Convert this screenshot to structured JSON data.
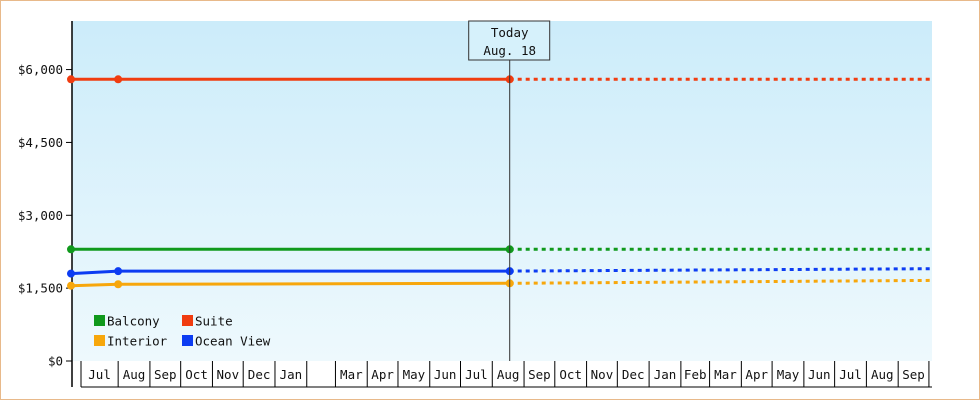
{
  "chart_data": {
    "type": "line",
    "ylim": [
      0,
      7000
    ],
    "y_ticks": [
      {
        "value": 0,
        "label": "$0"
      },
      {
        "value": 1500,
        "label": "$1,500"
      },
      {
        "value": 3000,
        "label": "$3,000"
      },
      {
        "value": 4500,
        "label": "$4,500"
      },
      {
        "value": 6000,
        "label": "$6,000"
      }
    ],
    "x_range": [
      "2017-06-16",
      "2019-10-04"
    ],
    "month_labels": [
      {
        "label": "Jul",
        "date": "2017-07"
      },
      {
        "label": "Aug",
        "date": "2017-08"
      },
      {
        "label": "Sep",
        "date": "2017-09"
      },
      {
        "label": "Oct",
        "date": "2017-10"
      },
      {
        "label": "Nov",
        "date": "2017-11"
      },
      {
        "label": "Dec",
        "date": "2017-12"
      },
      {
        "label": "Jan",
        "date": "2018-01"
      },
      {
        "label": "",
        "date": "2018-02"
      },
      {
        "label": "Mar",
        "date": "2018-03"
      },
      {
        "label": "Apr",
        "date": "2018-04"
      },
      {
        "label": "May",
        "date": "2018-05"
      },
      {
        "label": "Jun",
        "date": "2018-06"
      },
      {
        "label": "Jul",
        "date": "2018-07"
      },
      {
        "label": "Aug",
        "date": "2018-08"
      },
      {
        "label": "Sep",
        "date": "2018-09"
      },
      {
        "label": "Oct",
        "date": "2018-10"
      },
      {
        "label": "Nov",
        "date": "2018-11"
      },
      {
        "label": "Dec",
        "date": "2018-12"
      },
      {
        "label": "Jan",
        "date": "2019-01"
      },
      {
        "label": "Feb",
        "date": "2019-02"
      },
      {
        "label": "Mar",
        "date": "2019-03"
      },
      {
        "label": "Apr",
        "date": "2019-04"
      },
      {
        "label": "May",
        "date": "2019-05"
      },
      {
        "label": "Jun",
        "date": "2019-06"
      },
      {
        "label": "Jul",
        "date": "2019-07"
      },
      {
        "label": "Aug",
        "date": "2019-08"
      },
      {
        "label": "Sep",
        "date": "2019-09"
      }
    ],
    "today": {
      "line1": "Today",
      "line2": "Aug. 18",
      "date": "2018-08-18"
    },
    "series": [
      {
        "name": "Balcony",
        "color": "#10991c",
        "points": [
          {
            "x": "2017-06-16",
            "y": 2300
          },
          {
            "x": "2018-08-18",
            "y": 2300
          }
        ],
        "forecast": [
          {
            "x": "2018-08-18",
            "y": 2300
          },
          {
            "x": "2019-10-04",
            "y": 2300
          }
        ]
      },
      {
        "name": "Suite",
        "color": "#f03c10",
        "points": [
          {
            "x": "2017-06-16",
            "y": 5800
          },
          {
            "x": "2017-08-01",
            "y": 5800
          },
          {
            "x": "2018-08-18",
            "y": 5800
          }
        ],
        "forecast": [
          {
            "x": "2018-08-18",
            "y": 5800
          },
          {
            "x": "2019-10-04",
            "y": 5800
          }
        ]
      },
      {
        "name": "Interior",
        "color": "#f7a70c",
        "points": [
          {
            "x": "2017-06-16",
            "y": 1550
          },
          {
            "x": "2017-08-01",
            "y": 1580
          },
          {
            "x": "2018-08-18",
            "y": 1600
          }
        ],
        "forecast": [
          {
            "x": "2018-08-18",
            "y": 1600
          },
          {
            "x": "2019-10-04",
            "y": 1660
          }
        ]
      },
      {
        "name": "Ocean View",
        "color": "#0c3cf2",
        "points": [
          {
            "x": "2017-06-16",
            "y": 1800
          },
          {
            "x": "2017-08-01",
            "y": 1850
          },
          {
            "x": "2018-08-18",
            "y": 1850
          }
        ],
        "forecast": [
          {
            "x": "2018-08-18",
            "y": 1850
          },
          {
            "x": "2019-10-04",
            "y": 1900
          }
        ]
      }
    ],
    "legend": {
      "placement": "bottom-left",
      "order": [
        "Balcony",
        "Suite",
        "Interior",
        "Ocean View"
      ]
    }
  }
}
